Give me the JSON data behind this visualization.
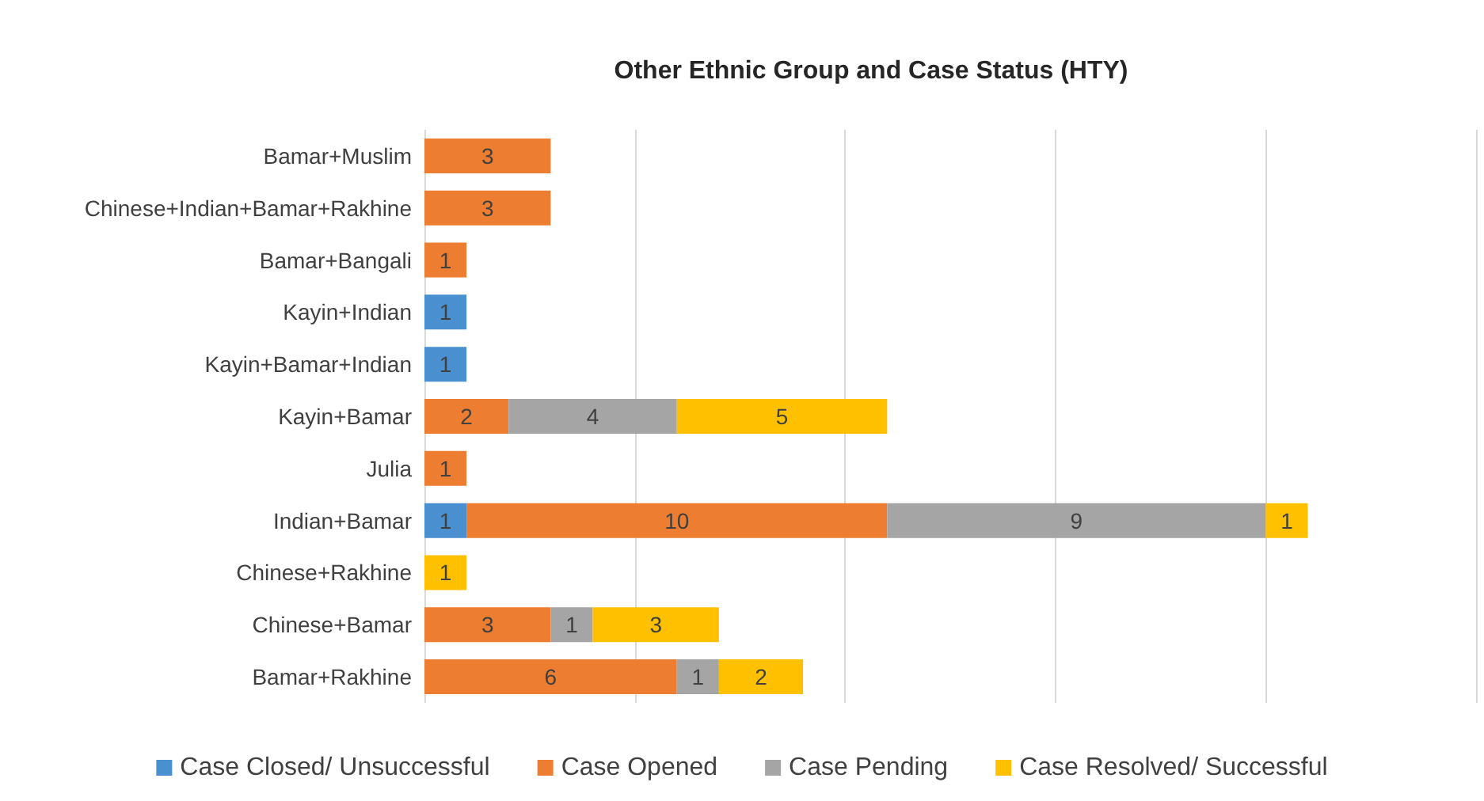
{
  "chart_data": {
    "type": "bar",
    "title": "Other Ethnic Group and Case Status (HTY)",
    "orientation": "horizontal",
    "stacked": true,
    "categories": [
      "Bamar+Muslim",
      "Chinese+Indian+Bamar+Rakhine",
      "Bamar+Bangali",
      "Kayin+Indian",
      "Kayin+Bamar+Indian",
      "Kayin+Bamar",
      "Julia",
      "Indian+Bamar",
      "Chinese+Rakhine",
      "Chinese+Bamar",
      "Bamar+Rakhine"
    ],
    "series": [
      {
        "name": "Case Closed/ Unsuccessful",
        "color": "#4a8fd0",
        "values": [
          null,
          null,
          null,
          1,
          1,
          null,
          null,
          1,
          null,
          null,
          null
        ]
      },
      {
        "name": "Case Opened",
        "color": "#ed7d31",
        "values": [
          3,
          3,
          1,
          null,
          null,
          2,
          1,
          10,
          null,
          3,
          6
        ]
      },
      {
        "name": "Case Pending",
        "color": "#a5a5a5",
        "values": [
          null,
          null,
          null,
          null,
          null,
          4,
          null,
          9,
          null,
          1,
          1
        ]
      },
      {
        "name": "Case Resolved/ Successful",
        "color": "#ffc000",
        "values": [
          null,
          null,
          null,
          null,
          null,
          5,
          null,
          1,
          1,
          3,
          2
        ]
      }
    ],
    "xlim": [
      0,
      25
    ],
    "xticks": [
      {
        "value": 0,
        "label": null
      },
      {
        "value": 5,
        "label": null
      },
      {
        "value": 10,
        "label": null
      },
      {
        "value": 15,
        "label": null
      },
      {
        "value": 20,
        "label": null
      },
      {
        "value": 25,
        "label": null
      }
    ],
    "tick_labels": "y",
    "grid": "x",
    "legend": "bottom",
    "data_labels": true
  }
}
